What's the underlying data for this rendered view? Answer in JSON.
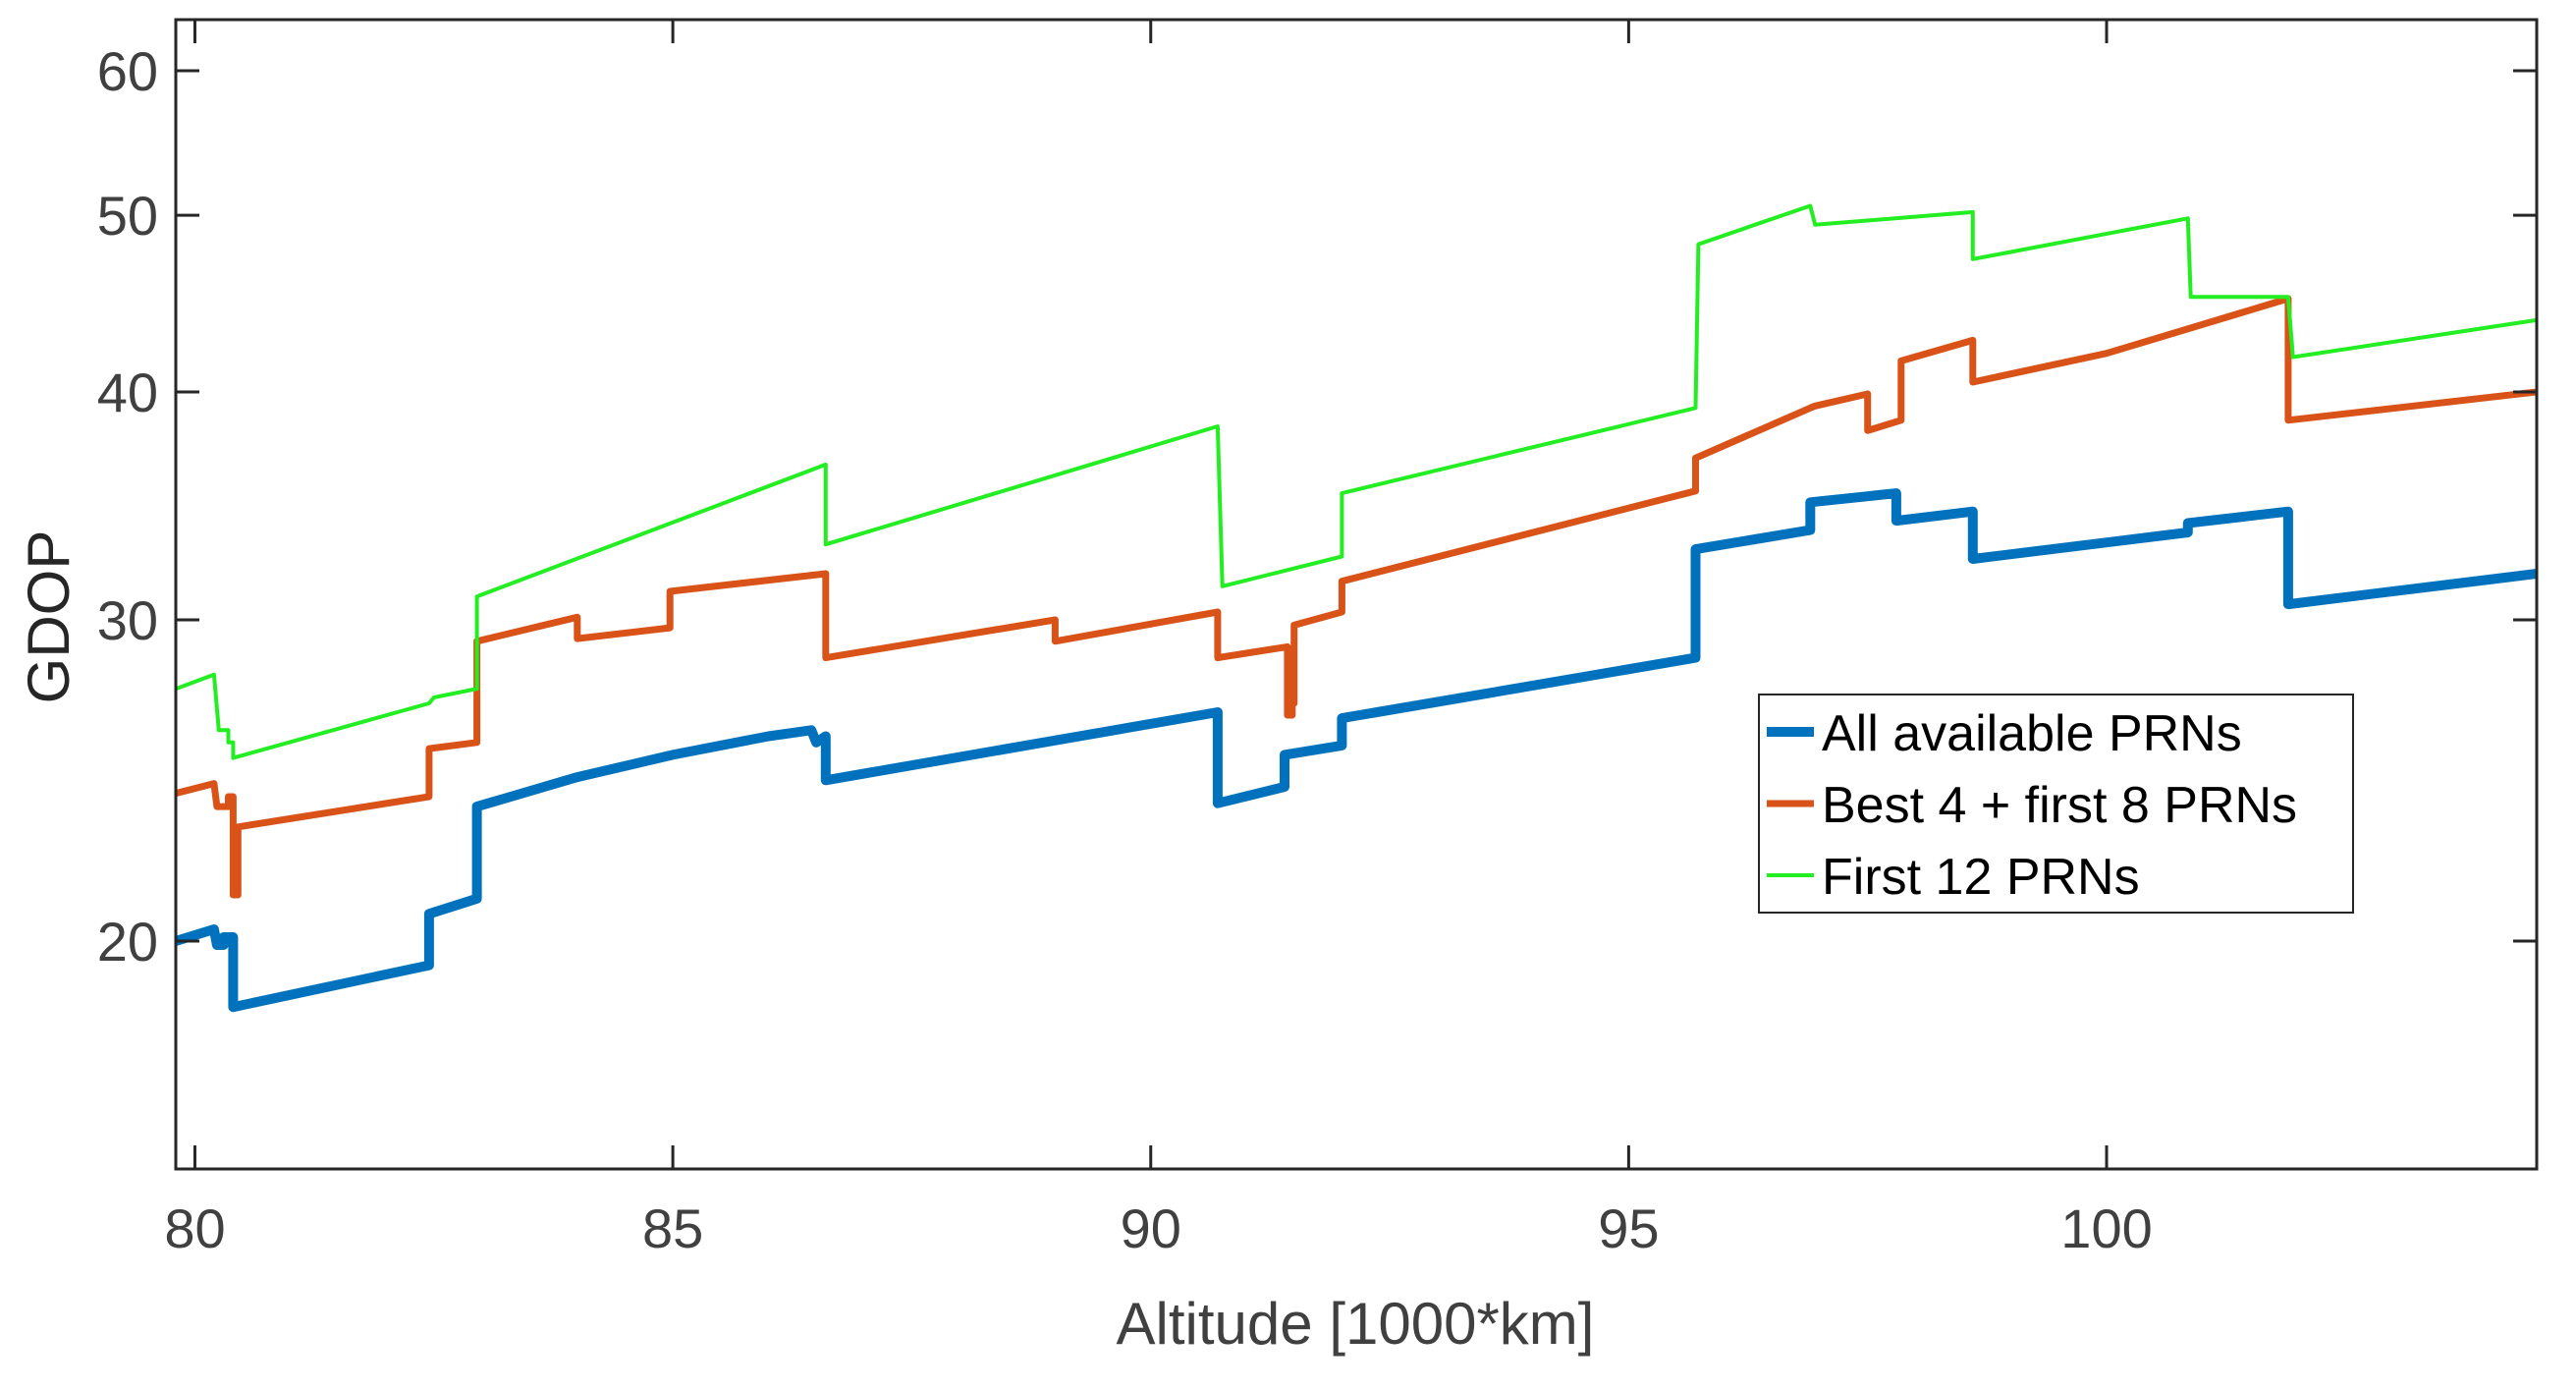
{
  "chart_data": {
    "type": "line",
    "title": "",
    "xlabel": "Altitude [1000*km]",
    "ylabel": "GDOP",
    "xlim": [
      79.8,
      104.5
    ],
    "ylim": [
      15,
      64
    ],
    "yscale": "log",
    "xticks": [
      80,
      85,
      90,
      95,
      100
    ],
    "xtick_labels": [
      "80",
      "85",
      "90",
      "95",
      "100"
    ],
    "yticks": [
      20,
      30,
      40,
      50,
      60
    ],
    "ytick_labels": [
      "20",
      "30",
      "40",
      "50",
      "60"
    ],
    "grid": false,
    "legend_position": "center-right",
    "colors": {
      "axis": "#262626",
      "tick_text": "#404040",
      "label_text": "#404040"
    },
    "series": [
      {
        "name": "All available PRNs",
        "color": "#0072BD",
        "line_weight": "thick",
        "x": [
          79.8,
          80.2,
          80.23,
          80.3,
          80.3,
          80.4,
          80.4,
          82.45,
          82.45,
          82.95,
          82.95,
          84.0,
          85.0,
          86.0,
          86.45,
          86.5,
          86.5,
          86.6,
          86.6,
          90.7,
          90.7,
          91.4,
          91.4,
          92.0,
          92.0,
          95.7,
          95.7,
          96.9,
          96.9,
          97.8,
          97.8,
          98.6,
          98.6,
          100.85,
          100.85,
          101.9,
          101.9,
          104.5
        ],
        "y": [
          20.0,
          20.3,
          19.9,
          19.9,
          20.1,
          20.1,
          18.4,
          19.4,
          20.7,
          21.1,
          23.7,
          24.6,
          25.3,
          25.9,
          26.1,
          25.7,
          25.7,
          25.9,
          24.5,
          26.7,
          23.8,
          24.3,
          25.3,
          25.6,
          26.5,
          28.6,
          32.8,
          33.6,
          34.8,
          35.2,
          34.0,
          34.4,
          32.4,
          33.5,
          33.9,
          34.4,
          30.6,
          31.8
        ]
      },
      {
        "name": "Best 4 + first 8 PRNs",
        "color": "#D95319",
        "line_weight": "medium",
        "x": [
          79.8,
          80.2,
          80.23,
          80.35,
          80.35,
          80.4,
          80.4,
          80.45,
          80.45,
          82.45,
          82.45,
          82.95,
          82.95,
          84.0,
          84.0,
          84.97,
          84.97,
          86.6,
          86.6,
          89.0,
          89.0,
          90.7,
          90.7,
          91.43,
          91.43,
          91.48,
          91.48,
          91.5,
          91.5,
          92.0,
          92.0,
          95.7,
          95.7,
          96.9,
          96.95,
          97.5,
          97.5,
          97.85,
          97.85,
          98.6,
          98.6,
          100.0,
          101.9,
          101.9,
          104.5
        ],
        "y": [
          24.1,
          24.4,
          23.7,
          23.7,
          24.0,
          24.0,
          21.2,
          21.2,
          23.1,
          24.0,
          25.5,
          25.7,
          29.2,
          30.1,
          29.3,
          29.7,
          31.1,
          31.8,
          28.6,
          30.0,
          29.2,
          30.3,
          28.6,
          29.0,
          26.6,
          26.6,
          27.0,
          27.0,
          29.8,
          30.3,
          31.5,
          35.3,
          36.8,
          39.2,
          39.3,
          39.9,
          38.1,
          38.6,
          41.6,
          42.7,
          40.5,
          42.0,
          45.0,
          38.6,
          40.0
        ]
      },
      {
        "name": "First 12 PRNs",
        "color": "#22EE22",
        "line_weight": "thin",
        "x": [
          79.8,
          80.2,
          80.25,
          80.35,
          80.35,
          80.4,
          80.4,
          82.45,
          82.5,
          82.95,
          82.95,
          86.6,
          86.6,
          90.7,
          90.75,
          92.0,
          92.0,
          95.7,
          95.73,
          96.9,
          96.95,
          98.6,
          98.6,
          100.85,
          100.88,
          101.9,
          101.95,
          104.5
        ],
        "y": [
          27.5,
          28.0,
          26.1,
          26.1,
          25.7,
          25.7,
          25.2,
          27.0,
          27.2,
          27.5,
          30.9,
          36.5,
          33.0,
          38.3,
          31.3,
          32.5,
          35.2,
          39.2,
          48.2,
          50.6,
          49.4,
          50.2,
          47.3,
          49.8,
          45.1,
          45.1,
          41.8,
          43.8
        ]
      }
    ]
  }
}
